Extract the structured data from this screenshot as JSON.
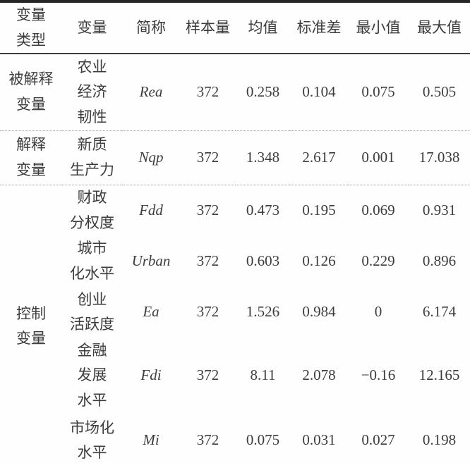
{
  "table": {
    "headers": {
      "type": "变量\n类型",
      "variable": "变量",
      "abbr": "简称",
      "n": "样本量",
      "mean": "均值",
      "sd": "标准差",
      "min": "最小值",
      "max": "最大值"
    },
    "explained": {
      "type": "被解释\n变量",
      "variable": "农业\n经济\n韧性",
      "abbr": "Rea",
      "n": "372",
      "mean": "0.258",
      "sd": "0.104",
      "min": "0.075",
      "max": "0.505"
    },
    "explanatory": {
      "type": "解释\n变量",
      "variable": "新质\n生产力",
      "abbr": "Nqp",
      "n": "372",
      "mean": "1.348",
      "sd": "2.617",
      "min": "0.001",
      "max": "17.038"
    },
    "control_label": "控制\n变量",
    "control_rows": [
      {
        "variable": "财政\n分权度",
        "abbr": "Fdd",
        "n": "372",
        "mean": "0.473",
        "sd": "0.195",
        "min": "0.069",
        "max": "0.931"
      },
      {
        "variable": "城市\n化水平",
        "abbr": "Urban",
        "n": "372",
        "mean": "0.603",
        "sd": "0.126",
        "min": "0.229",
        "max": "0.896"
      },
      {
        "variable": "创业\n活跃度",
        "abbr": "Ea",
        "n": "372",
        "mean": "1.526",
        "sd": "0.984",
        "min": "0",
        "max": "6.174"
      },
      {
        "variable": "金融\n发展\n水平",
        "abbr": "Fdi",
        "n": "372",
        "mean": "8.11",
        "sd": "2.078",
        "min": "−0.16",
        "max": "12.165"
      },
      {
        "variable": "市场化\n水平",
        "abbr": "Mi",
        "n": "372",
        "mean": "0.075",
        "sd": "0.031",
        "min": "0.027",
        "max": "0.198"
      }
    ]
  },
  "colors": {
    "text": "#3c3c3c",
    "rule_heavy": "#262626",
    "rule_medium": "#3d3d3d",
    "rule_dotted": "#a3a3a3"
  }
}
